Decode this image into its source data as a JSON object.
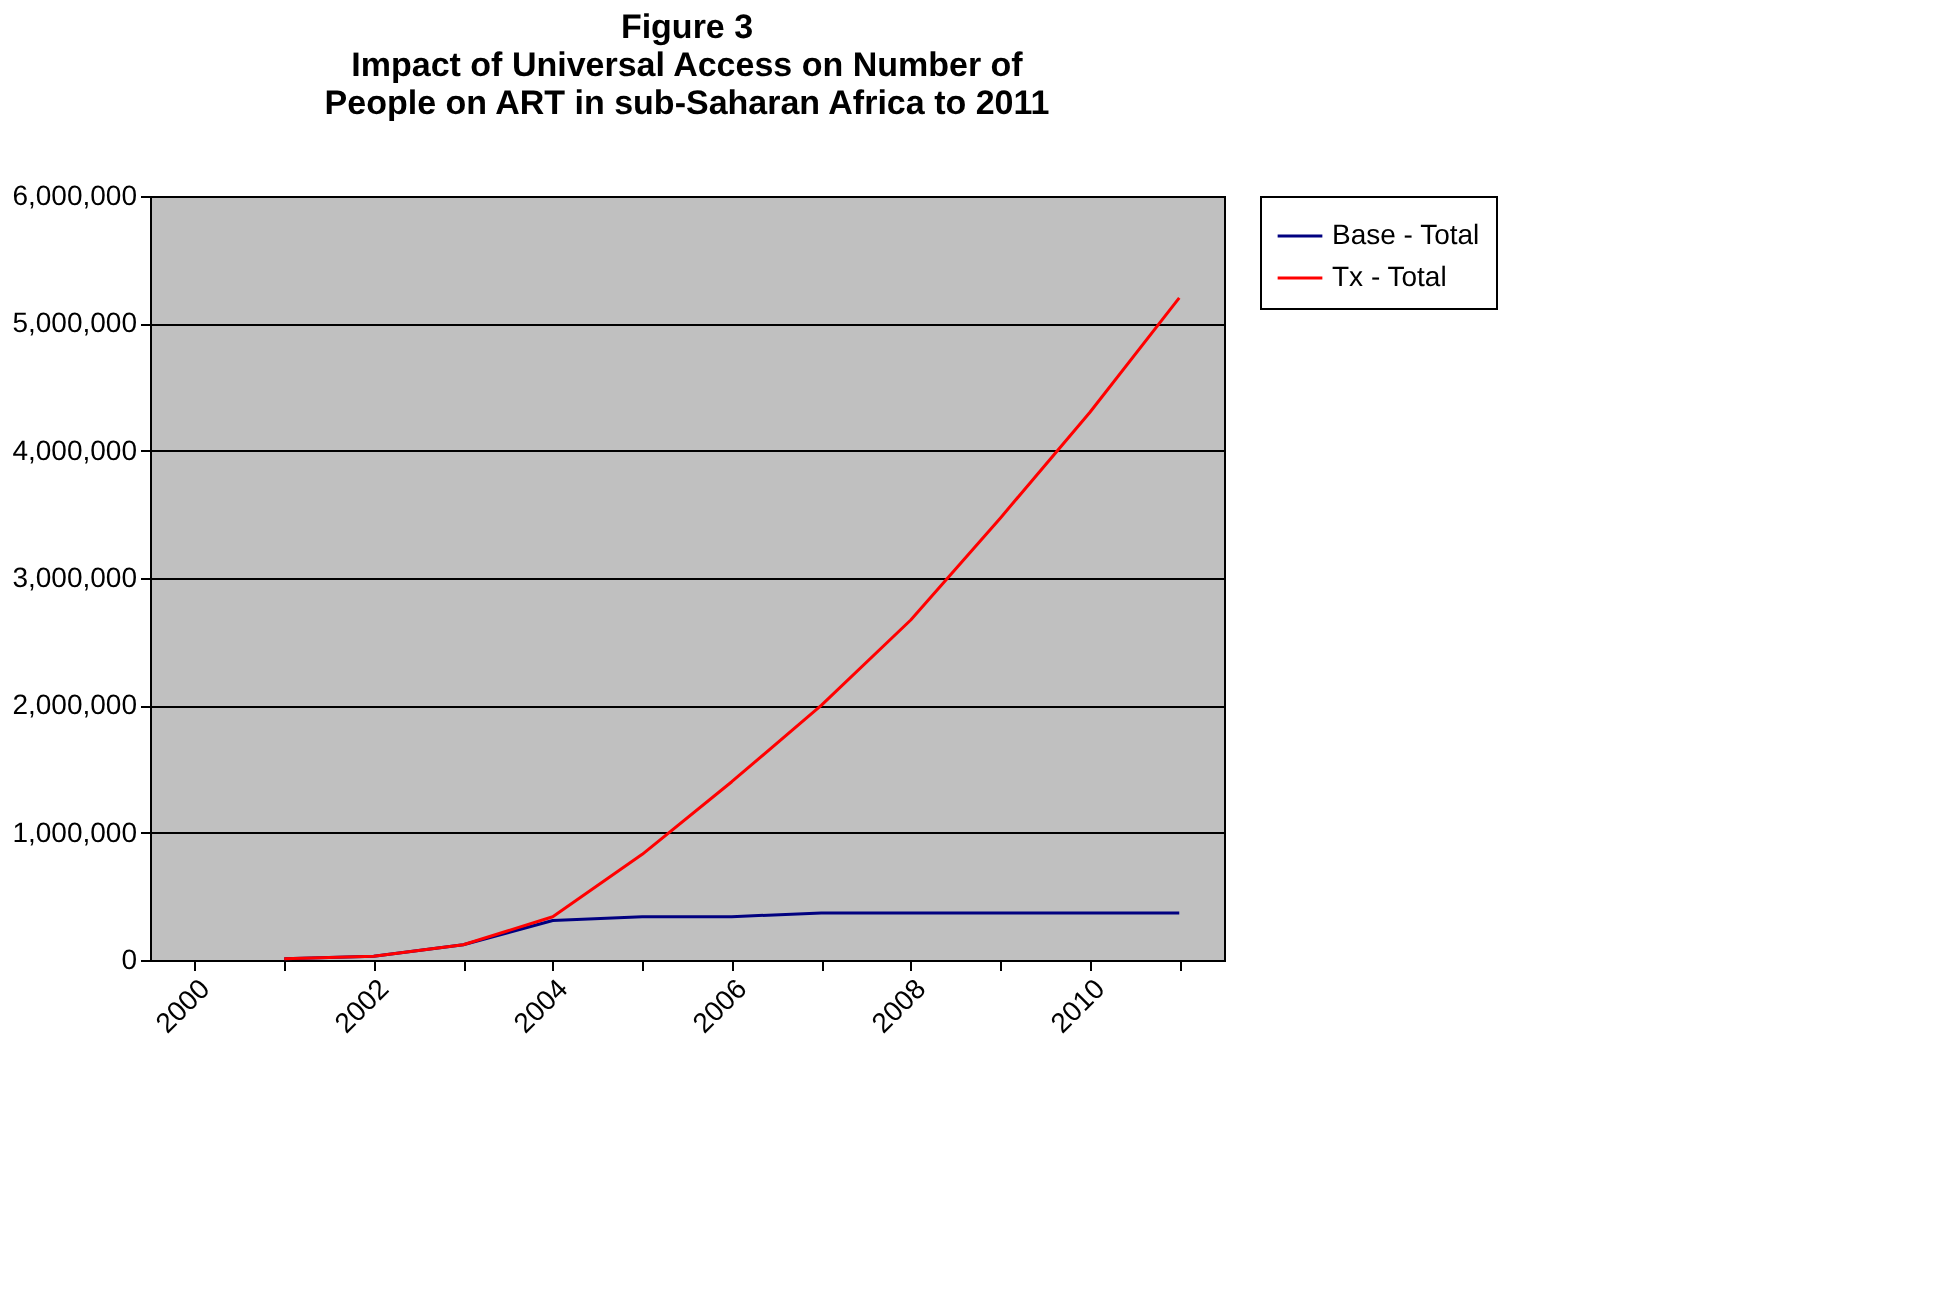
{
  "chart_data": {
    "type": "line",
    "title": "Figure 3\nImpact of Universal Access on Number of\nPeople on ART in sub-Saharan Africa to 2011",
    "categories": [
      "2000",
      null,
      "2002",
      null,
      "2004",
      null,
      "2006",
      null,
      "2008",
      null,
      "2010",
      null
    ],
    "series": [
      {
        "name": "Base - Total",
        "color": "#000080",
        "values": [
          null,
          10000,
          30000,
          120000,
          310000,
          340000,
          340000,
          370000,
          370000,
          370000,
          370000,
          370000
        ]
      },
      {
        "name": "Tx - Total",
        "color": "#ff0000",
        "values": [
          null,
          10000,
          30000,
          120000,
          340000,
          830000,
          1400000,
          2000000,
          2670000,
          3470000,
          4300000,
          5200000
        ]
      }
    ],
    "ylim": [
      0,
      6000000
    ],
    "yticks": [
      0,
      {
        "value": 1000000,
        "label": "1,000,000"
      },
      {
        "value": 2000000,
        "label": "2,000,000"
      },
      {
        "value": 3000000,
        "label": "3,000,000"
      },
      {
        "value": 4000000,
        "label": "4,000,000"
      },
      {
        "value": 5000000,
        "label": "5,000,000"
      },
      {
        "value": 6000000,
        "label": "6,000,000"
      }
    ],
    "grid": "y",
    "legend": "right",
    "marker": "none",
    "line_style": "solid"
  }
}
